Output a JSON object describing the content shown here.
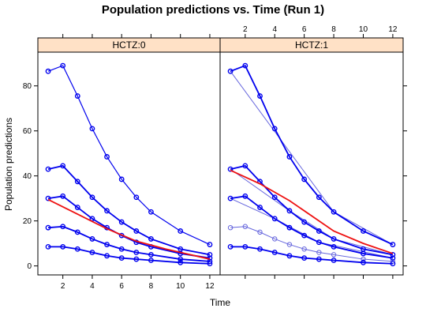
{
  "chart_data": {
    "type": "line",
    "title": "Population predictions vs. Time (Run 1)",
    "xlabel": "Time",
    "ylabel": "Population predictions",
    "xlim": [
      0.3,
      12.7
    ],
    "ylim": [
      -4,
      95
    ],
    "x_ticks": [
      2,
      4,
      6,
      8,
      10,
      12
    ],
    "y_ticks": [
      0,
      20,
      40,
      60,
      80
    ],
    "x": [
      1,
      2,
      3,
      4,
      5,
      6,
      7,
      8,
      10,
      12
    ],
    "colors": {
      "series": "#0000ee",
      "series_light": "#6666dd",
      "smooth": "#ee1111",
      "strip_bg": "#ffe1c6"
    },
    "panels": [
      {
        "strip": "HCTZ:0",
        "series": [
          {
            "values": [
              86.5,
              89,
              75.5,
              61,
              48.5,
              38.5,
              30.5,
              24,
              15.5,
              9.5
            ]
          },
          {
            "values": [
              43,
              44.5,
              37.5,
              30.5,
              24.5,
              19.5,
              15.5,
              12,
              7.5,
              5
            ]
          },
          {
            "values": [
              30,
              31,
              26,
              21,
              17,
              13.5,
              10.5,
              8.5,
              5.5,
              3.5
            ]
          },
          {
            "values": [
              17,
              17.5,
              15,
              12,
              9.5,
              7.5,
              6,
              5,
              3,
              2
            ]
          },
          {
            "values": [
              8.5,
              8.5,
              7.5,
              6,
              4.5,
              3.5,
              3,
              2.5,
              1.5,
              1
            ]
          }
        ],
        "smooth": {
          "x": [
            1,
            3,
            5,
            7,
            9,
            11,
            12
          ],
          "values": [
            29.5,
            23,
            16.5,
            11,
            7.5,
            4.5,
            3
          ]
        }
      },
      {
        "strip": "HCTZ:1",
        "series": [
          {
            "values": [
              86.5,
              89,
              75.5,
              61,
              48.5,
              38.5,
              30.5,
              24,
              15.5,
              9.5
            ]
          },
          {
            "values": [
              43,
              44.5,
              37.5,
              30.5,
              24.5,
              19.5,
              15.5,
              12,
              7.5,
              5
            ]
          },
          {
            "values": [
              30,
              31,
              26,
              21,
              17,
              13.5,
              10.5,
              8.5,
              5.5,
              3.5
            ]
          },
          {
            "values": [
              8.5,
              8.5,
              7.5,
              6,
              4.5,
              3.5,
              3,
              2.5,
              1.5,
              1
            ]
          }
        ],
        "light_series": [
          {
            "values": [
              17,
              17.5,
              15,
              12,
              9.5,
              7.5,
              6,
              5,
              3,
              2
            ]
          }
        ],
        "cross_lines": [
          {
            "x": [
              1,
              8,
              12
            ],
            "values": [
              86.5,
              24,
              9.5
            ]
          },
          {
            "x": [
              1,
              5,
              8,
              12
            ],
            "values": [
              43,
              24.5,
              12,
              5
            ]
          },
          {
            "x": [
              1,
              4,
              7,
              12
            ],
            "values": [
              30,
              21,
              10.5,
              3.5
            ]
          }
        ],
        "smooth": {
          "x": [
            1,
            3,
            5,
            7,
            8,
            10,
            12
          ],
          "values": [
            42.5,
            36.5,
            29,
            20,
            15.5,
            10,
            5.5
          ]
        }
      }
    ]
  }
}
